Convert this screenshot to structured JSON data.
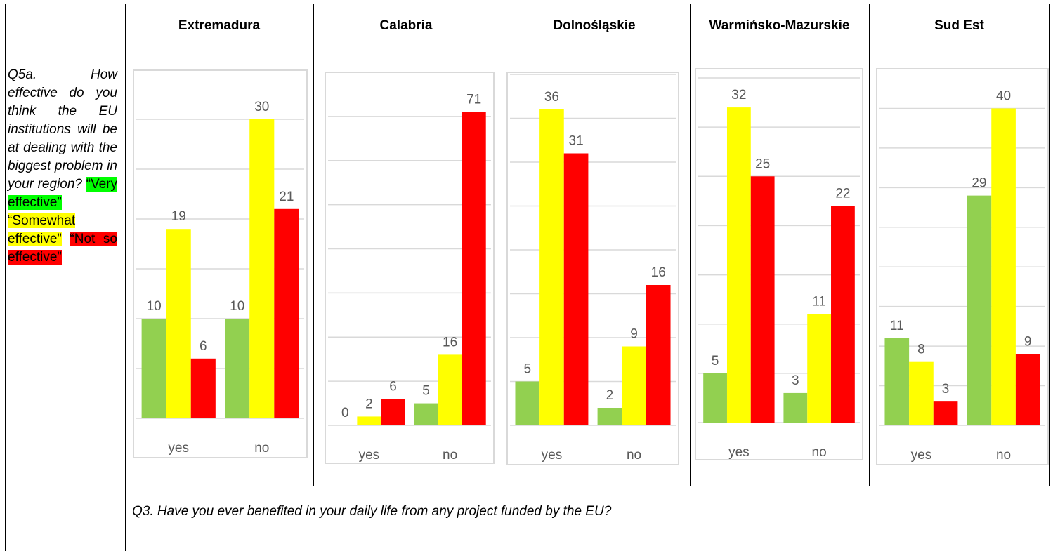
{
  "question": "Q5a. How effective do you think the EU institutions will be at dealing with the biggest problem in your region?",
  "legend": [
    {
      "label": "“Very effective”",
      "color": "#00ff00"
    },
    {
      "label": "“Somewhat effective”",
      "color": "#ffff00"
    },
    {
      "label": "“Not so effective”",
      "color": "#ff0000"
    }
  ],
  "footer": "Q3. Have you ever benefited in your daily life from any project funded by the EU?",
  "chart_data": [
    {
      "type": "bar",
      "title": "Extremadura",
      "categories": [
        "yes",
        "no"
      ],
      "ylim": [
        0,
        35
      ],
      "yticks": [
        0,
        5,
        10,
        15,
        20,
        25,
        30,
        35
      ],
      "grid": true,
      "series": [
        {
          "color": "#92d050",
          "values": [
            10,
            10
          ]
        },
        {
          "color": "#ffff00",
          "values": [
            19,
            30
          ]
        },
        {
          "color": "#ff0000",
          "values": [
            6,
            21
          ]
        }
      ]
    },
    {
      "type": "bar",
      "title": "Calabria",
      "categories": [
        "yes",
        "no"
      ],
      "ylim": [
        0,
        80
      ],
      "yticks": [
        0,
        10,
        20,
        30,
        40,
        50,
        60,
        70,
        80
      ],
      "grid": true,
      "series": [
        {
          "color": "#92d050",
          "values": [
            0,
            5
          ]
        },
        {
          "color": "#ffff00",
          "values": [
            2,
            16
          ]
        },
        {
          "color": "#ff0000",
          "values": [
            6,
            71
          ]
        }
      ]
    },
    {
      "type": "bar",
      "title": "Dolnośląskie",
      "categories": [
        "yes",
        "no"
      ],
      "ylim": [
        0,
        40
      ],
      "yticks": [
        0,
        5,
        10,
        15,
        20,
        25,
        30,
        35,
        40
      ],
      "grid": true,
      "series": [
        {
          "color": "#92d050",
          "values": [
            5,
            2
          ]
        },
        {
          "color": "#ffff00",
          "values": [
            36,
            9
          ]
        },
        {
          "color": "#ff0000",
          "values": [
            31,
            16
          ]
        }
      ]
    },
    {
      "type": "bar",
      "title": "Warmińsko-Mazurskie",
      "categories": [
        "yes",
        "no"
      ],
      "ylim": [
        0,
        35
      ],
      "yticks": [
        0,
        5,
        10,
        15,
        20,
        25,
        30,
        35
      ],
      "grid": true,
      "series": [
        {
          "color": "#92d050",
          "values": [
            5,
            3
          ]
        },
        {
          "color": "#ffff00",
          "values": [
            32,
            11
          ]
        },
        {
          "color": "#ff0000",
          "values": [
            25,
            22
          ]
        }
      ]
    },
    {
      "type": "bar",
      "title": "Sud Est",
      "categories": [
        "yes",
        "no"
      ],
      "ylim": [
        0,
        45
      ],
      "yticks": [
        0,
        5,
        10,
        15,
        20,
        25,
        30,
        35,
        40,
        45
      ],
      "grid": true,
      "series": [
        {
          "color": "#92d050",
          "values": [
            11,
            29
          ]
        },
        {
          "color": "#ffff00",
          "values": [
            8,
            40
          ]
        },
        {
          "color": "#ff0000",
          "values": [
            3,
            9
          ]
        }
      ]
    }
  ]
}
